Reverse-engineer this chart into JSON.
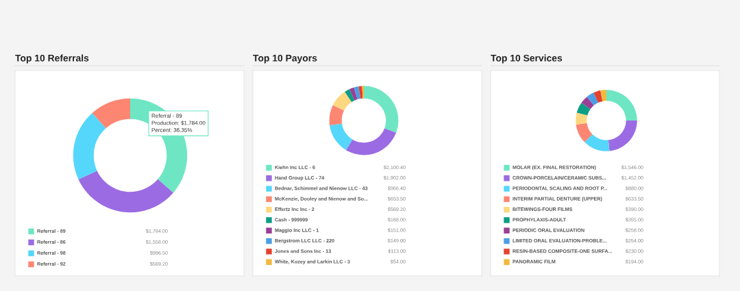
{
  "chart_data": [
    {
      "type": "donut",
      "title": "Top 10 Referrals",
      "legend": "bottom",
      "categories": [
        "Referral - 89",
        "Referral - 86",
        "Referral - 98",
        "Referral - 92"
      ],
      "values": [
        1784.0,
        1558.0,
        996.5,
        569.2
      ],
      "value_labels": [
        "$1,784.00",
        "$1,558.00",
        "$996.50",
        "$569.20"
      ],
      "colors": [
        "#6ee6c3",
        "#9b6be3",
        "#55d6fb",
        "#fd8672"
      ],
      "annotations": [
        "Referral - 89\nProduction: $1,784.00\nPercent: 36.35%"
      ]
    },
    {
      "type": "donut",
      "title": "Top 10 Payors",
      "legend": "bottom",
      "categories": [
        "Kiehn Inc LLC - 6",
        "Hand Group LLC - 74",
        "Bednar, Schimmel and Nienow LLC - 43",
        "McKenzie, Dooley and Nienow and So...",
        "Effertz Inc Inc - 2",
        "Cash - 999999",
        "Maggio Inc LLC - 1",
        "Bergstrom LLC LLC - 220",
        "Jones and Sons Inc - 13",
        "White, Kozey and Larkin LLC - 3"
      ],
      "values": [
        2100.4,
        1902.0,
        966.4,
        653.5,
        569.2,
        168.0,
        151.0,
        149.0,
        113.0,
        54.0
      ],
      "value_labels": [
        "$2,100.40",
        "$1,902.00",
        "$966.40",
        "$653.50",
        "$569.20",
        "$168.00",
        "$151.00",
        "$149.00",
        "$113.00",
        "$54.00"
      ],
      "colors": [
        "#6ee6c3",
        "#9b6be3",
        "#55d6fb",
        "#fd8672",
        "#fed880",
        "#0d9e86",
        "#9b3f96",
        "#4a9fe6",
        "#e4412f",
        "#f2b93e"
      ]
    },
    {
      "type": "donut",
      "title": "Top 10 Services",
      "legend": "bottom",
      "categories": [
        "MOLAR (EX. FINAL RESTORATION)",
        "CROWN-PORCELAIN/CERAMIC SUBS...",
        "PERIODONTAL SCALING AND ROOT P...",
        "INTERIM PARTIAL DENTURE (UPPER)",
        "BITEWINGS-FOUR FILMS",
        "PROPHYLAXIS-ADULT",
        "PERIODIC ORAL EVALUATION",
        "LIMITED ORAL EVALUATION-PROBLE...",
        "RESIN-BASED COMPOSITE-ONE SURFA...",
        "PANORAMIC FILM"
      ],
      "values": [
        1546.0,
        1452.0,
        880.0,
        633.5,
        390.0,
        355.0,
        258.0,
        254.0,
        230.0,
        194.0
      ],
      "value_labels": [
        "$1,546.00",
        "$1,452.00",
        "$880.00",
        "$633.50",
        "$390.00",
        "$355.00",
        "$258.00",
        "$254.00",
        "$230.00",
        "$194.00"
      ],
      "colors": [
        "#6ee6c3",
        "#9b6be3",
        "#55d6fb",
        "#fd8672",
        "#fed880",
        "#0d9e86",
        "#9b3f96",
        "#4a9fe6",
        "#e4412f",
        "#f2b93e"
      ]
    }
  ]
}
